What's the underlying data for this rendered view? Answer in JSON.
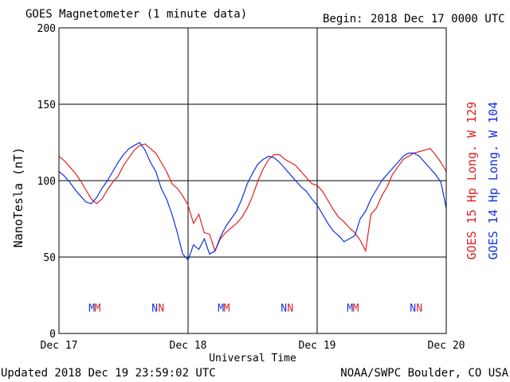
{
  "title": "GOES Magnetometer (1 minute data)",
  "begin_label": "Begin:",
  "begin_value": "2018 Dec 17 0000 UTC",
  "updated": "Updated 2018 Dec 19 23:59:02 UTC",
  "source": "NOAA/SWPC Boulder, CO USA",
  "chart_data": {
    "type": "line",
    "title": "GOES Magnetometer (1 minute data)",
    "xlabel": "Universal Time",
    "ylabel": "NanoTesla (nT)",
    "xlim": [
      0,
      72
    ],
    "x_unit": "hours since 2018 Dec 17 0000 UTC",
    "ylim": [
      0,
      200
    ],
    "yticks": [
      0,
      50,
      100,
      150,
      200
    ],
    "xticks": [
      {
        "x": 0,
        "label": "Dec 17"
      },
      {
        "x": 24,
        "label": "Dec 18"
      },
      {
        "x": 48,
        "label": "Dec 19"
      },
      {
        "x": 72,
        "label": "Dec 20"
      }
    ],
    "grid": true,
    "legend_position": "right, vertical",
    "series": [
      {
        "name": "GOES 15 Hp  Long. W 129",
        "color": "#e02020",
        "x": [
          0,
          1,
          2,
          3,
          4,
          5,
          6,
          7,
          8,
          9,
          10,
          11,
          12,
          13,
          14,
          15,
          16,
          17,
          18,
          19,
          20,
          21,
          22,
          23,
          24,
          25,
          26,
          27,
          28,
          29,
          30,
          31,
          32,
          33,
          34,
          35,
          36,
          37,
          38,
          39,
          40,
          41,
          42,
          43,
          44,
          45,
          46,
          47,
          48,
          49,
          50,
          51,
          52,
          53,
          54,
          55,
          56,
          57,
          58,
          59,
          60,
          61,
          62,
          63,
          64,
          65,
          66,
          67,
          68,
          69,
          70,
          71,
          72
        ],
        "values": [
          116,
          113,
          109,
          105,
          100,
          94,
          88,
          85,
          88,
          94,
          99,
          103,
          110,
          115,
          120,
          123,
          124,
          121,
          118,
          112,
          106,
          98,
          95,
          90,
          84,
          72,
          78,
          66,
          65,
          54,
          62,
          66,
          69,
          72,
          76,
          82,
          90,
          100,
          108,
          114,
          117,
          117,
          114,
          112,
          110,
          106,
          102,
          98,
          97,
          93,
          87,
          81,
          76,
          73,
          69,
          66,
          61,
          54,
          78,
          82,
          90,
          96,
          104,
          109,
          114,
          116,
          118,
          119,
          120,
          121,
          117,
          112,
          106
        ]
      },
      {
        "name": "GOES 14 Hp  Long. W 104",
        "color": "#1030e0",
        "x": [
          0,
          1,
          2,
          3,
          4,
          5,
          6,
          7,
          8,
          9,
          10,
          11,
          12,
          13,
          14,
          15,
          16,
          17,
          18,
          19,
          20,
          21,
          22,
          23,
          24,
          25,
          26,
          27,
          28,
          29,
          30,
          31,
          32,
          33,
          34,
          35,
          36,
          37,
          38,
          39,
          40,
          41,
          42,
          43,
          44,
          45,
          46,
          47,
          48,
          49,
          50,
          51,
          52,
          53,
          54,
          55,
          56,
          57,
          58,
          59,
          60,
          61,
          62,
          63,
          64,
          65,
          66,
          67,
          68,
          69,
          70,
          71,
          72
        ],
        "values": [
          106,
          103,
          99,
          94,
          90,
          86,
          85,
          89,
          95,
          100,
          106,
          112,
          117,
          121,
          123,
          125,
          120,
          112,
          106,
          95,
          88,
          78,
          66,
          52,
          48,
          58,
          55,
          62,
          52,
          54,
          63,
          70,
          75,
          80,
          88,
          98,
          105,
          111,
          114,
          116,
          115,
          112,
          108,
          104,
          100,
          96,
          93,
          88,
          84,
          78,
          72,
          67,
          64,
          60,
          62,
          64,
          75,
          80,
          88,
          94,
          100,
          104,
          108,
          112,
          116,
          118,
          118,
          116,
          112,
          108,
          104,
          99,
          82
        ]
      }
    ],
    "annotations": [
      {
        "x": 6.1,
        "text": "M",
        "color": "#1030e0"
      },
      {
        "x": 7.2,
        "text": "M",
        "color": "#e02020"
      },
      {
        "x": 17.8,
        "text": "N",
        "color": "#1030e0"
      },
      {
        "x": 19.0,
        "text": "N",
        "color": "#e02020"
      },
      {
        "x": 30.1,
        "text": "M",
        "color": "#1030e0"
      },
      {
        "x": 31.2,
        "text": "M",
        "color": "#e02020"
      },
      {
        "x": 41.8,
        "text": "N",
        "color": "#1030e0"
      },
      {
        "x": 43.0,
        "text": "N",
        "color": "#e02020"
      },
      {
        "x": 54.1,
        "text": "M",
        "color": "#1030e0"
      },
      {
        "x": 55.2,
        "text": "M",
        "color": "#e02020"
      },
      {
        "x": 65.8,
        "text": "N",
        "color": "#1030e0"
      },
      {
        "x": 67.0,
        "text": "N",
        "color": "#e02020"
      }
    ],
    "annotation_y": 17
  }
}
